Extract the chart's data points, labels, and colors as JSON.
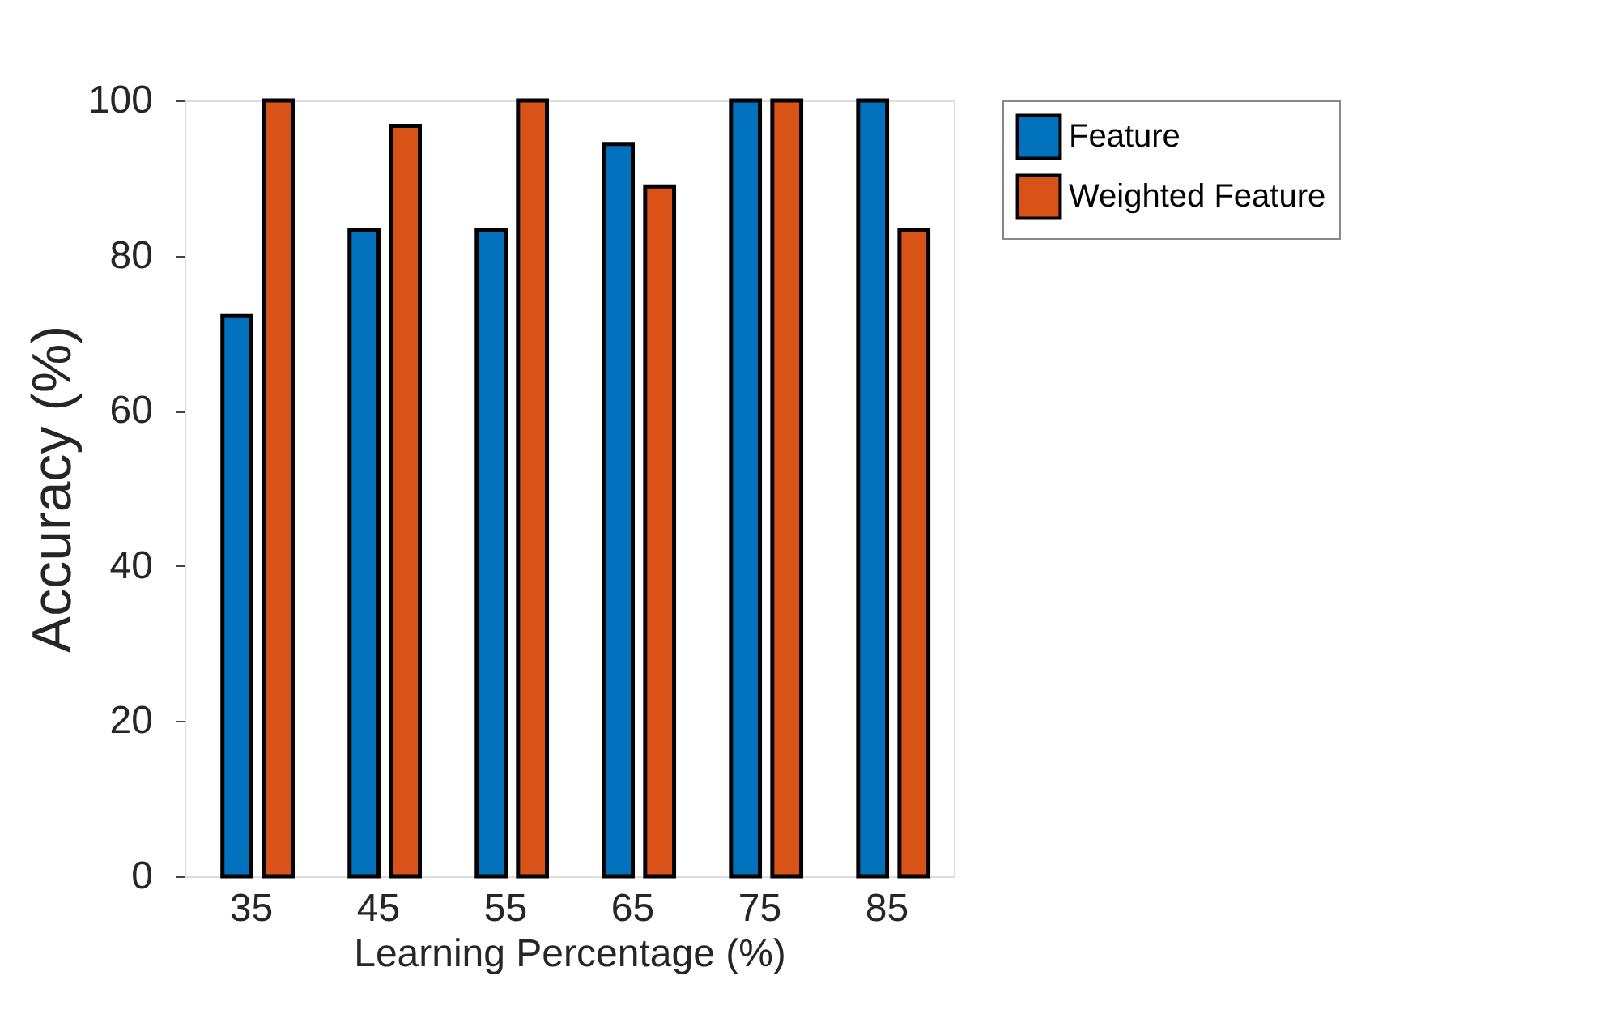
{
  "chart_data": {
    "type": "bar",
    "xlabel": "Learning Percentage (%)",
    "ylabel": "Accuracy (%)",
    "categories": [
      "35",
      "45",
      "55",
      "65",
      "75",
      "85"
    ],
    "series": [
      {
        "name": "Feature",
        "color": "#0072bd",
        "values": [
          72.2,
          83.3,
          83.3,
          94.4,
          100,
          100
        ]
      },
      {
        "name": "Weighted Feature",
        "color": "#d95319",
        "values": [
          100,
          96.7,
          100,
          88.9,
          100,
          83.3
        ]
      }
    ],
    "ylim": [
      0,
      100
    ],
    "yticks": [
      0,
      20,
      40,
      60,
      80,
      100
    ],
    "grid": false,
    "legend": "top right"
  }
}
